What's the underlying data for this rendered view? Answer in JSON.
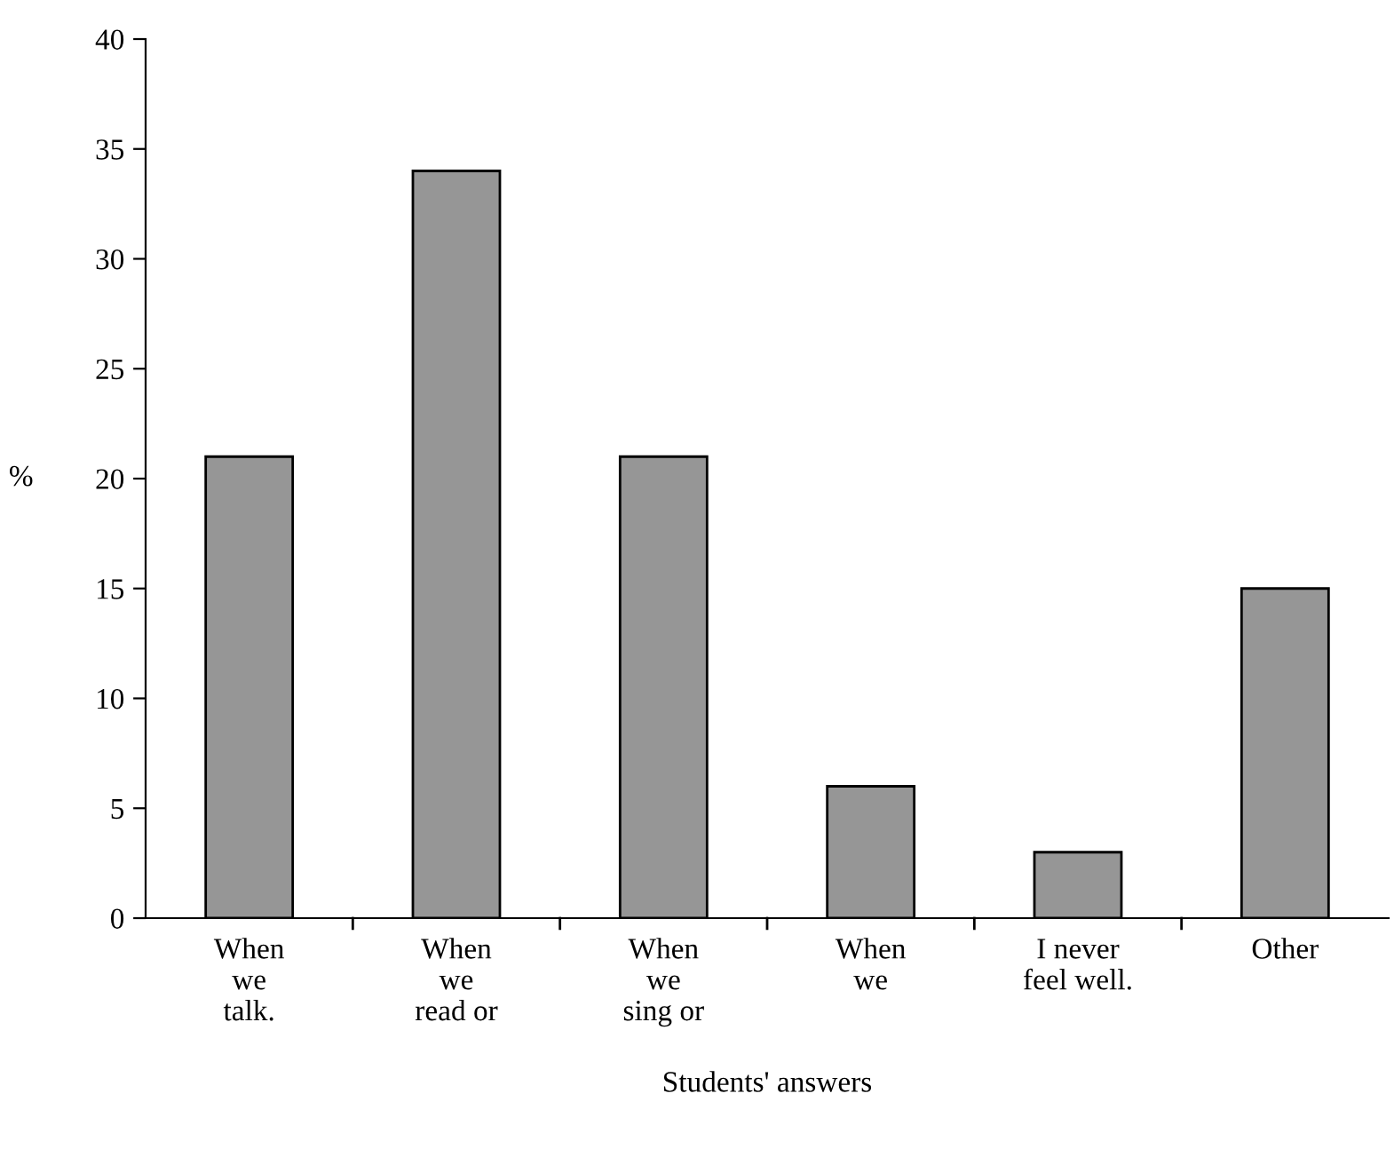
{
  "chart_data": {
    "type": "bar",
    "xlabel": "Students' answers",
    "ylabel": "%",
    "categories": [
      "When\nwe\ntalk.",
      "When\nwe\nread or",
      "When\nwe\nsing or",
      "When\nwe",
      "I never\nfeel well.",
      "Other"
    ],
    "values": [
      21,
      34,
      21,
      6,
      3,
      15
    ],
    "color": "#969696",
    "ylim": [
      0,
      40
    ],
    "yticks": [
      0,
      5,
      10,
      15,
      20,
      25,
      30,
      35,
      40
    ],
    "grid": false,
    "legend": false
  }
}
